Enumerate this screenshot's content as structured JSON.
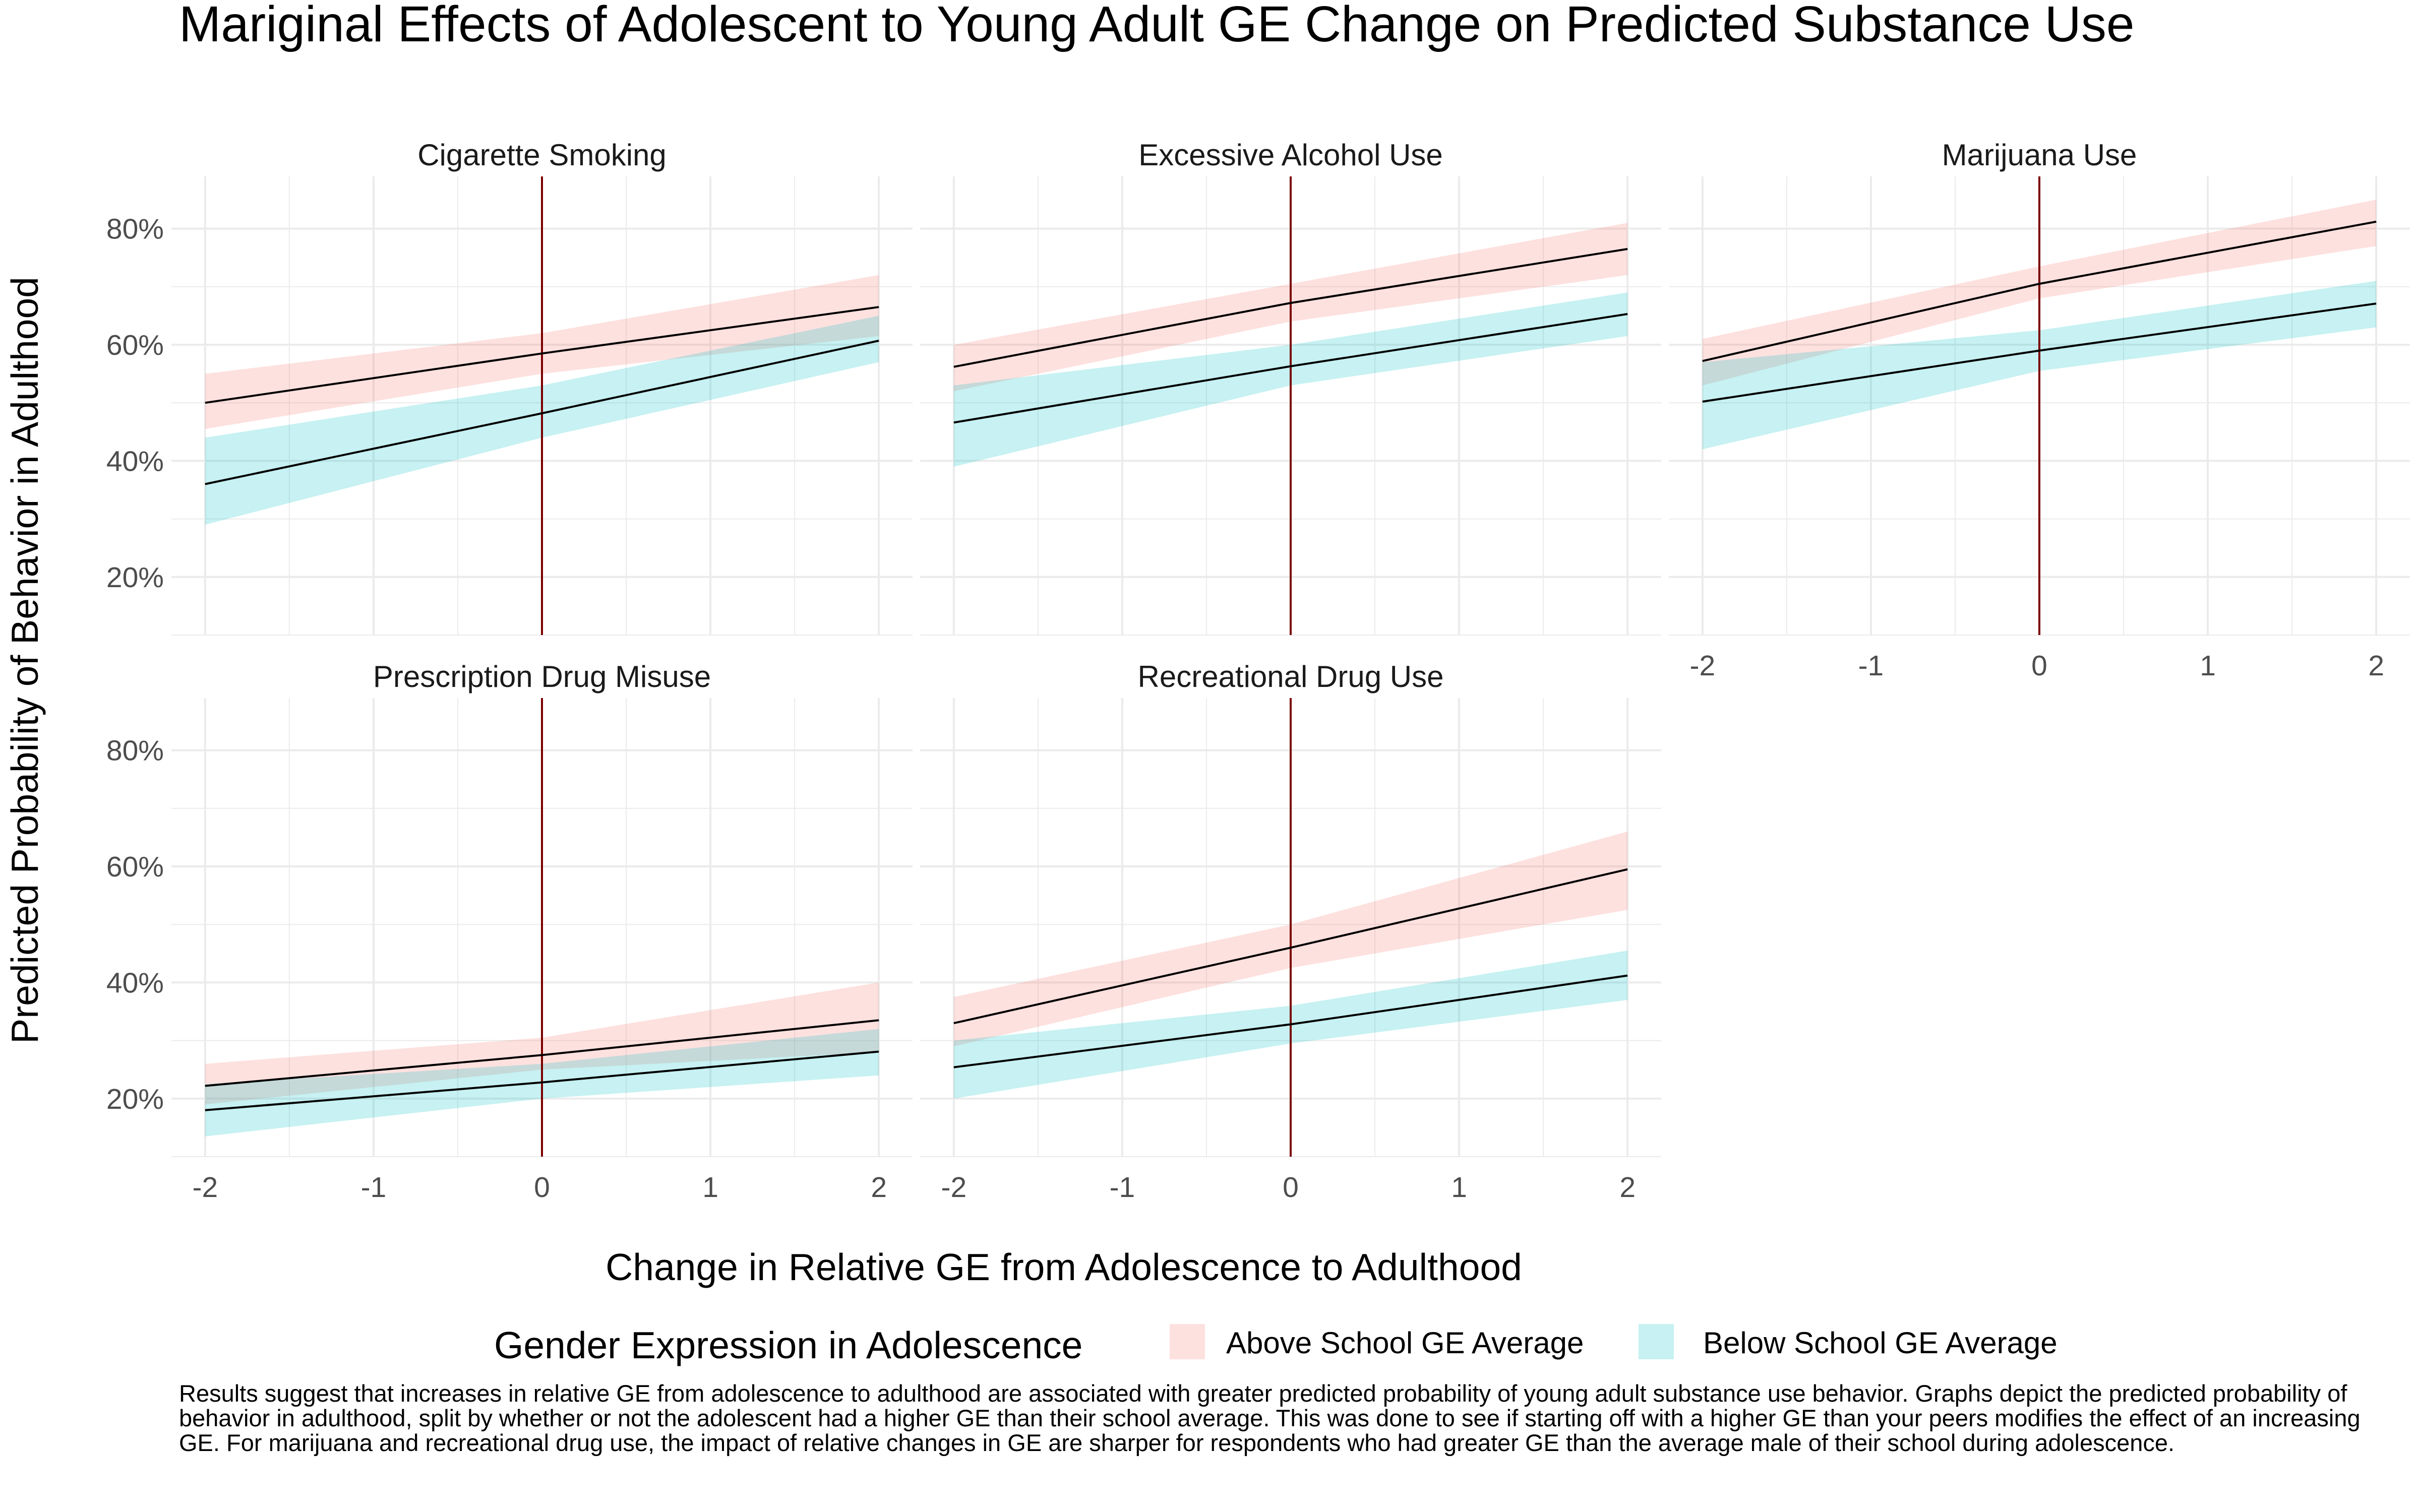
{
  "colors": {
    "above_band": "#f8766d",
    "below_band": "#00bfc4",
    "fit_line": "#000000",
    "zero_line": "#7a0000",
    "grid": "#ebebeb",
    "text": "#1a1a1a",
    "tick_text": "#4d4d4d"
  },
  "chart_data": {
    "type": "line",
    "title": "Mariginal Effects of Adolescent to Young Adult GE Change on Predicted Substance Use",
    "xlabel": "Change in Relative GE from Adolescence to Adulthood",
    "ylabel": "Predicted Probability of Behavior in Adulthood",
    "xlim": [
      -2.2,
      2.2
    ],
    "ylim": [
      0.1,
      0.89
    ],
    "x_ticks": [
      -2,
      -1,
      0,
      1,
      2
    ],
    "x_tick_labels": [
      "-2",
      "-1",
      "0",
      "1",
      "2"
    ],
    "y_ticks": [
      0.2,
      0.4,
      0.6,
      0.8
    ],
    "y_tick_labels": [
      "20%",
      "40%",
      "60%",
      "80%"
    ],
    "vline_x": 0,
    "grid": true,
    "legend": {
      "title": "Gender Expression in Adolescence",
      "position": "bottom",
      "entries": [
        "Above School GE Average",
        "Below School GE Average"
      ]
    },
    "panels": [
      {
        "title": "Cigarette Smoking",
        "series": [
          {
            "name": "Above School GE Average",
            "x": [
              -2,
              0,
              2
            ],
            "fit": [
              0.5,
              0.585,
              0.665
            ],
            "lower": [
              0.455,
              0.55,
              0.615
            ],
            "upper": [
              0.55,
              0.62,
              0.72
            ]
          },
          {
            "name": "Below School GE Average",
            "x": [
              -2,
              0,
              2
            ],
            "fit": [
              0.36,
              0.482,
              0.607
            ],
            "lower": [
              0.29,
              0.44,
              0.57
            ],
            "upper": [
              0.44,
              0.53,
              0.65
            ]
          }
        ]
      },
      {
        "title": "Excessive Alcohol Use",
        "series": [
          {
            "name": "Above School GE Average",
            "x": [
              -2,
              0,
              2
            ],
            "fit": [
              0.562,
              0.672,
              0.765
            ],
            "lower": [
              0.52,
              0.64,
              0.72
            ],
            "upper": [
              0.6,
              0.705,
              0.81
            ]
          },
          {
            "name": "Below School GE Average",
            "x": [
              -2,
              0,
              2
            ],
            "fit": [
              0.466,
              0.563,
              0.653
            ],
            "lower": [
              0.39,
              0.53,
              0.615
            ],
            "upper": [
              0.53,
              0.6,
              0.69
            ]
          }
        ]
      },
      {
        "title": "Marijuana Use",
        "series": [
          {
            "name": "Above School GE Average",
            "x": [
              -2,
              0,
              2
            ],
            "fit": [
              0.572,
              0.705,
              0.812
            ],
            "lower": [
              0.53,
              0.68,
              0.77
            ],
            "upper": [
              0.61,
              0.735,
              0.85
            ]
          },
          {
            "name": "Below School GE Average",
            "x": [
              -2,
              0,
              2
            ],
            "fit": [
              0.502,
              0.59,
              0.671
            ],
            "lower": [
              0.42,
              0.555,
              0.63
            ],
            "upper": [
              0.57,
              0.625,
              0.71
            ]
          }
        ]
      },
      {
        "title": "Prescription Drug Misuse",
        "series": [
          {
            "name": "Above School GE Average",
            "x": [
              -2,
              0,
              2
            ],
            "fit": [
              0.222,
              0.275,
              0.335
            ],
            "lower": [
              0.19,
              0.25,
              0.28
            ],
            "upper": [
              0.26,
              0.305,
              0.4
            ]
          },
          {
            "name": "Below School GE Average",
            "x": [
              -2,
              0,
              2
            ],
            "fit": [
              0.18,
              0.228,
              0.281
            ],
            "lower": [
              0.135,
              0.2,
              0.24
            ],
            "upper": [
              0.225,
              0.26,
              0.32
            ]
          }
        ]
      },
      {
        "title": "Recreational Drug Use",
        "series": [
          {
            "name": "Above School GE Average",
            "x": [
              -2,
              0,
              2
            ],
            "fit": [
              0.33,
              0.46,
              0.595
            ],
            "lower": [
              0.29,
              0.425,
              0.525
            ],
            "upper": [
              0.375,
              0.5,
              0.66
            ]
          },
          {
            "name": "Below School GE Average",
            "x": [
              -2,
              0,
              2
            ],
            "fit": [
              0.254,
              0.328,
              0.412
            ],
            "lower": [
              0.2,
              0.295,
              0.37
            ],
            "upper": [
              0.3,
              0.36,
              0.455
            ]
          }
        ]
      }
    ]
  },
  "caption": "Results suggest that increases in relative GE from adolescence to adulthood are associated with greater predicted probability of young adult substance use behavior. Graphs depict the predicted probability of behavior in adulthood, split by whether or not the adolescent had a higher GE than their school average. This was done to see if starting off with a higher GE than your peers modifies the effect of an increasing GE. For marijuana and recreational drug use, the impact of relative changes in GE are sharper for respondents who had greater GE than the average male of their school during adolescence."
}
